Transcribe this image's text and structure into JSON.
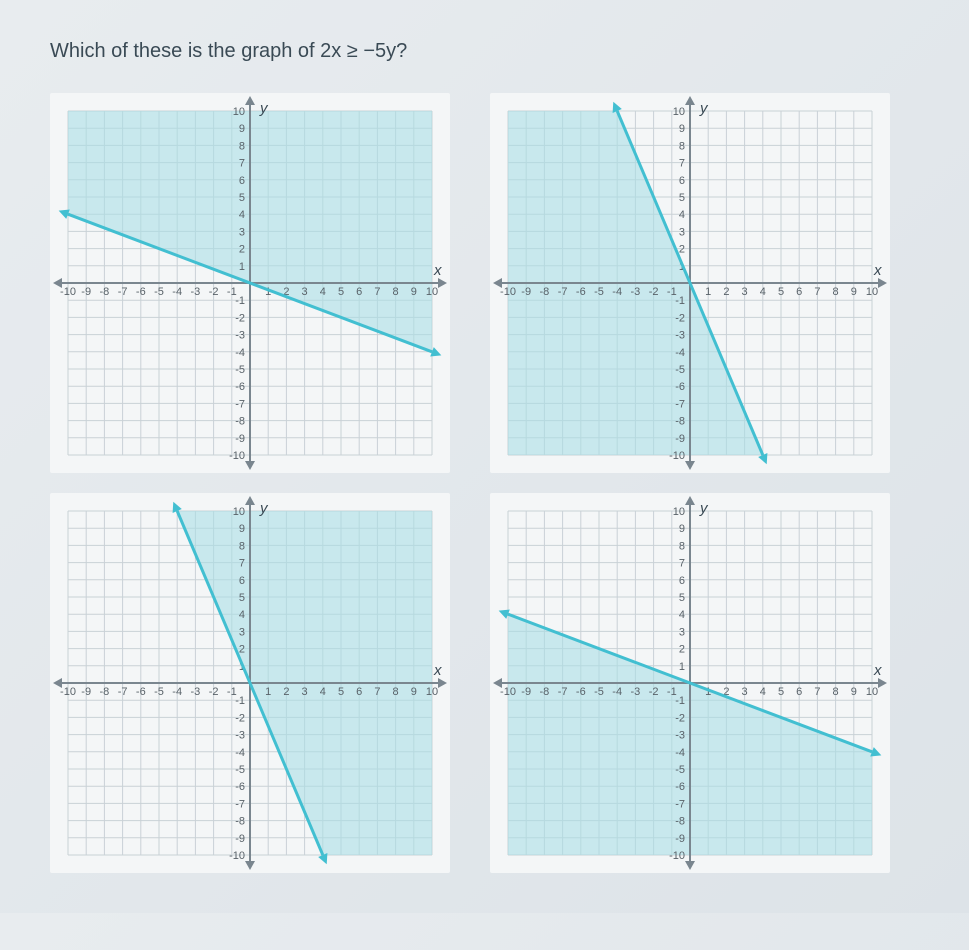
{
  "question_text": "Which of these is the graph of 2x ≥ −5y?",
  "xlim": [
    -10,
    10
  ],
  "ylim": [
    -10,
    10
  ],
  "tick_step": 1,
  "boundary_color": "#42bfd1",
  "shade_color": "#a8dfe6",
  "chart_bg": "#f4f6f7",
  "grid_color": "#c9d1d6",
  "axis_color": "#7a868f",
  "tick_label_color": "#596269",
  "xlabel": "x",
  "ylabel": "y",
  "charts": [
    {
      "line_p1": [
        -10,
        4
      ],
      "line_p2": [
        10,
        -4
      ],
      "shade_side": "above"
    },
    {
      "line_p1": [
        -4,
        10
      ],
      "line_p2": [
        4,
        -10
      ],
      "shade_side": "left"
    },
    {
      "line_p1": [
        -4,
        10
      ],
      "line_p2": [
        4,
        -10
      ],
      "shade_side": "right"
    },
    {
      "line_p1": [
        -10,
        4
      ],
      "line_p2": [
        10,
        -4
      ],
      "shade_side": "below"
    }
  ]
}
